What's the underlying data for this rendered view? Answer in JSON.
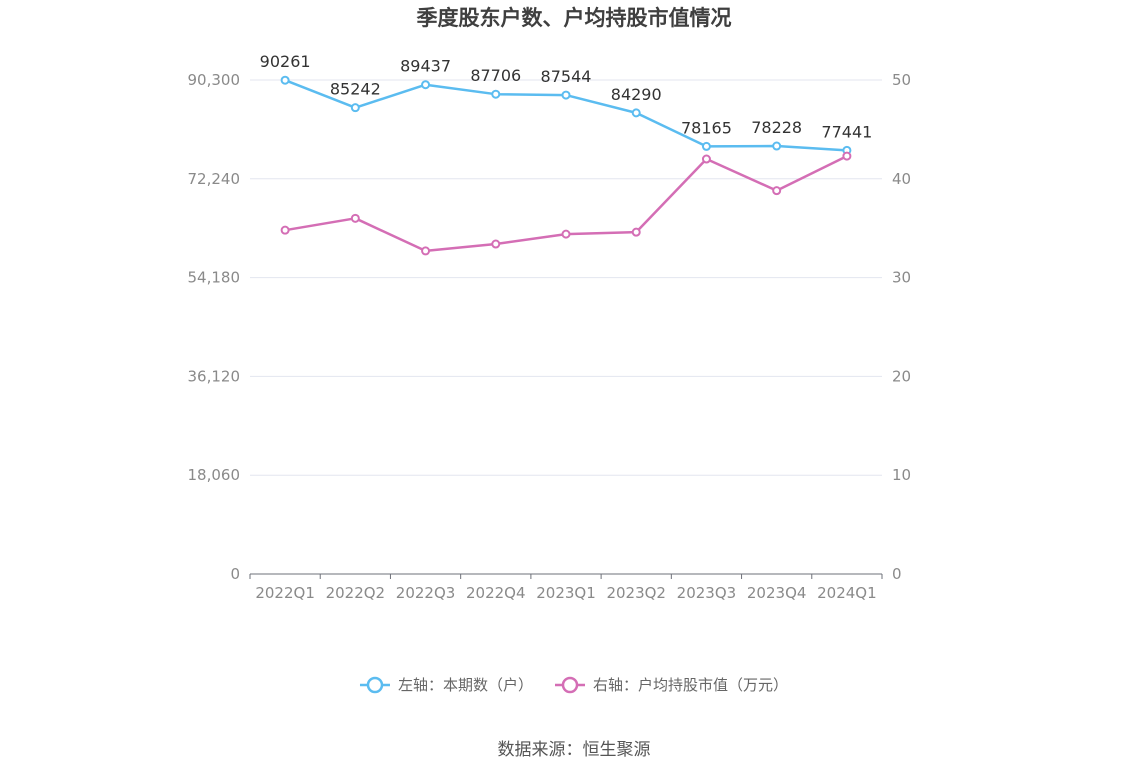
{
  "chart_data": {
    "type": "line",
    "title": "季度股东户数、户均持股市值情况",
    "categories": [
      "2022Q1",
      "2022Q2",
      "2022Q3",
      "2022Q4",
      "2023Q1",
      "2023Q2",
      "2023Q3",
      "2023Q4",
      "2024Q1"
    ],
    "left_axis": {
      "ylim": [
        0,
        90300
      ],
      "ticks": [
        0,
        18060,
        36120,
        54180,
        72240,
        90300
      ],
      "tick_labels": [
        "0",
        "18,060",
        "36,120",
        "54,180",
        "72,240",
        "90,300"
      ]
    },
    "right_axis": {
      "ylim": [
        0,
        50
      ],
      "ticks": [
        0,
        10,
        20,
        30,
        40,
        50
      ],
      "tick_labels": [
        "0",
        "10",
        "20",
        "30",
        "40",
        "50"
      ]
    },
    "series": [
      {
        "name": "左轴：本期数（户）",
        "axis": "left",
        "color": "#5bbcf0",
        "values": [
          90261,
          85242,
          89437,
          87706,
          87544,
          84290,
          78165,
          78228,
          77441
        ],
        "data_labels": [
          "90261",
          "85242",
          "89437",
          "87706",
          "87544",
          "84290",
          "78165",
          "78228",
          "77441"
        ]
      },
      {
        "name": "右轴：户均持股市值（万元）",
        "axis": "right",
        "color": "#d46eb5",
        "values": [
          34.8,
          36.0,
          32.7,
          33.4,
          34.4,
          34.6,
          42.0,
          38.8,
          42.3
        ]
      }
    ],
    "grid": true,
    "legend_position": "bottom"
  },
  "footer": {
    "source": "数据来源：恒生聚源"
  }
}
